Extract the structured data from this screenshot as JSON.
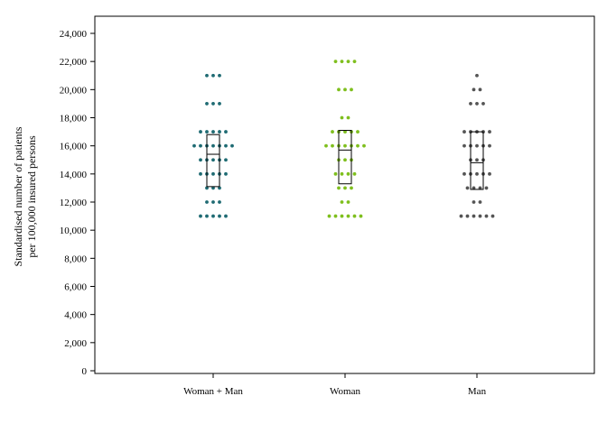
{
  "chart_data": {
    "type": "scatter",
    "subtype": "dot-strip with box plot",
    "ylabel_lines": [
      "Standardised number of patients",
      "per 100,000 insured persons"
    ],
    "ylim": [
      0,
      24000
    ],
    "yticks": [
      0,
      2000,
      4000,
      6000,
      8000,
      10000,
      12000,
      14000,
      16000,
      18000,
      20000,
      22000,
      24000
    ],
    "ytick_labels": [
      "0",
      "2,000",
      "4,000",
      "6,000",
      "8,000",
      "10,000",
      "12,000",
      "14,000",
      "16,000",
      "18,000",
      "20,000",
      "22,000",
      "24,000"
    ],
    "categories": [
      "Woman + Man",
      "Woman",
      "Man"
    ],
    "grid": false,
    "legend": "none",
    "series": [
      {
        "category": "Woman + Man",
        "color": "#1f6b73",
        "points": [
          {
            "y": 21000,
            "count": 3
          },
          {
            "y": 19000,
            "count": 3
          },
          {
            "y": 17000,
            "count": 5
          },
          {
            "y": 16000,
            "count": 7
          },
          {
            "y": 15000,
            "count": 5
          },
          {
            "y": 14000,
            "count": 5
          },
          {
            "y": 13000,
            "count": 3
          },
          {
            "y": 12000,
            "count": 3
          },
          {
            "y": 11000,
            "count": 5
          }
        ],
        "box": {
          "q1": 13100,
          "median": 15400,
          "q3": 16800
        }
      },
      {
        "category": "Woman",
        "color": "#7fbf1e",
        "points": [
          {
            "y": 22000,
            "count": 4
          },
          {
            "y": 20000,
            "count": 3
          },
          {
            "y": 18000,
            "count": 2
          },
          {
            "y": 17000,
            "count": 5
          },
          {
            "y": 16000,
            "count": 7
          },
          {
            "y": 15000,
            "count": 3
          },
          {
            "y": 14000,
            "count": 4
          },
          {
            "y": 13000,
            "count": 3
          },
          {
            "y": 12000,
            "count": 2
          },
          {
            "y": 11000,
            "count": 6
          }
        ],
        "box": {
          "q1": 13300,
          "median": 15700,
          "q3": 17100
        }
      },
      {
        "category": "Man",
        "color": "#555555",
        "points": [
          {
            "y": 21000,
            "count": 1
          },
          {
            "y": 20000,
            "count": 2
          },
          {
            "y": 19000,
            "count": 3
          },
          {
            "y": 17000,
            "count": 5
          },
          {
            "y": 16000,
            "count": 5
          },
          {
            "y": 15000,
            "count": 3
          },
          {
            "y": 14000,
            "count": 5
          },
          {
            "y": 13000,
            "count": 4
          },
          {
            "y": 12000,
            "count": 2
          },
          {
            "y": 11000,
            "count": 6
          }
        ],
        "box": {
          "q1": 12900,
          "median": 14800,
          "q3": 17000
        }
      }
    ]
  }
}
